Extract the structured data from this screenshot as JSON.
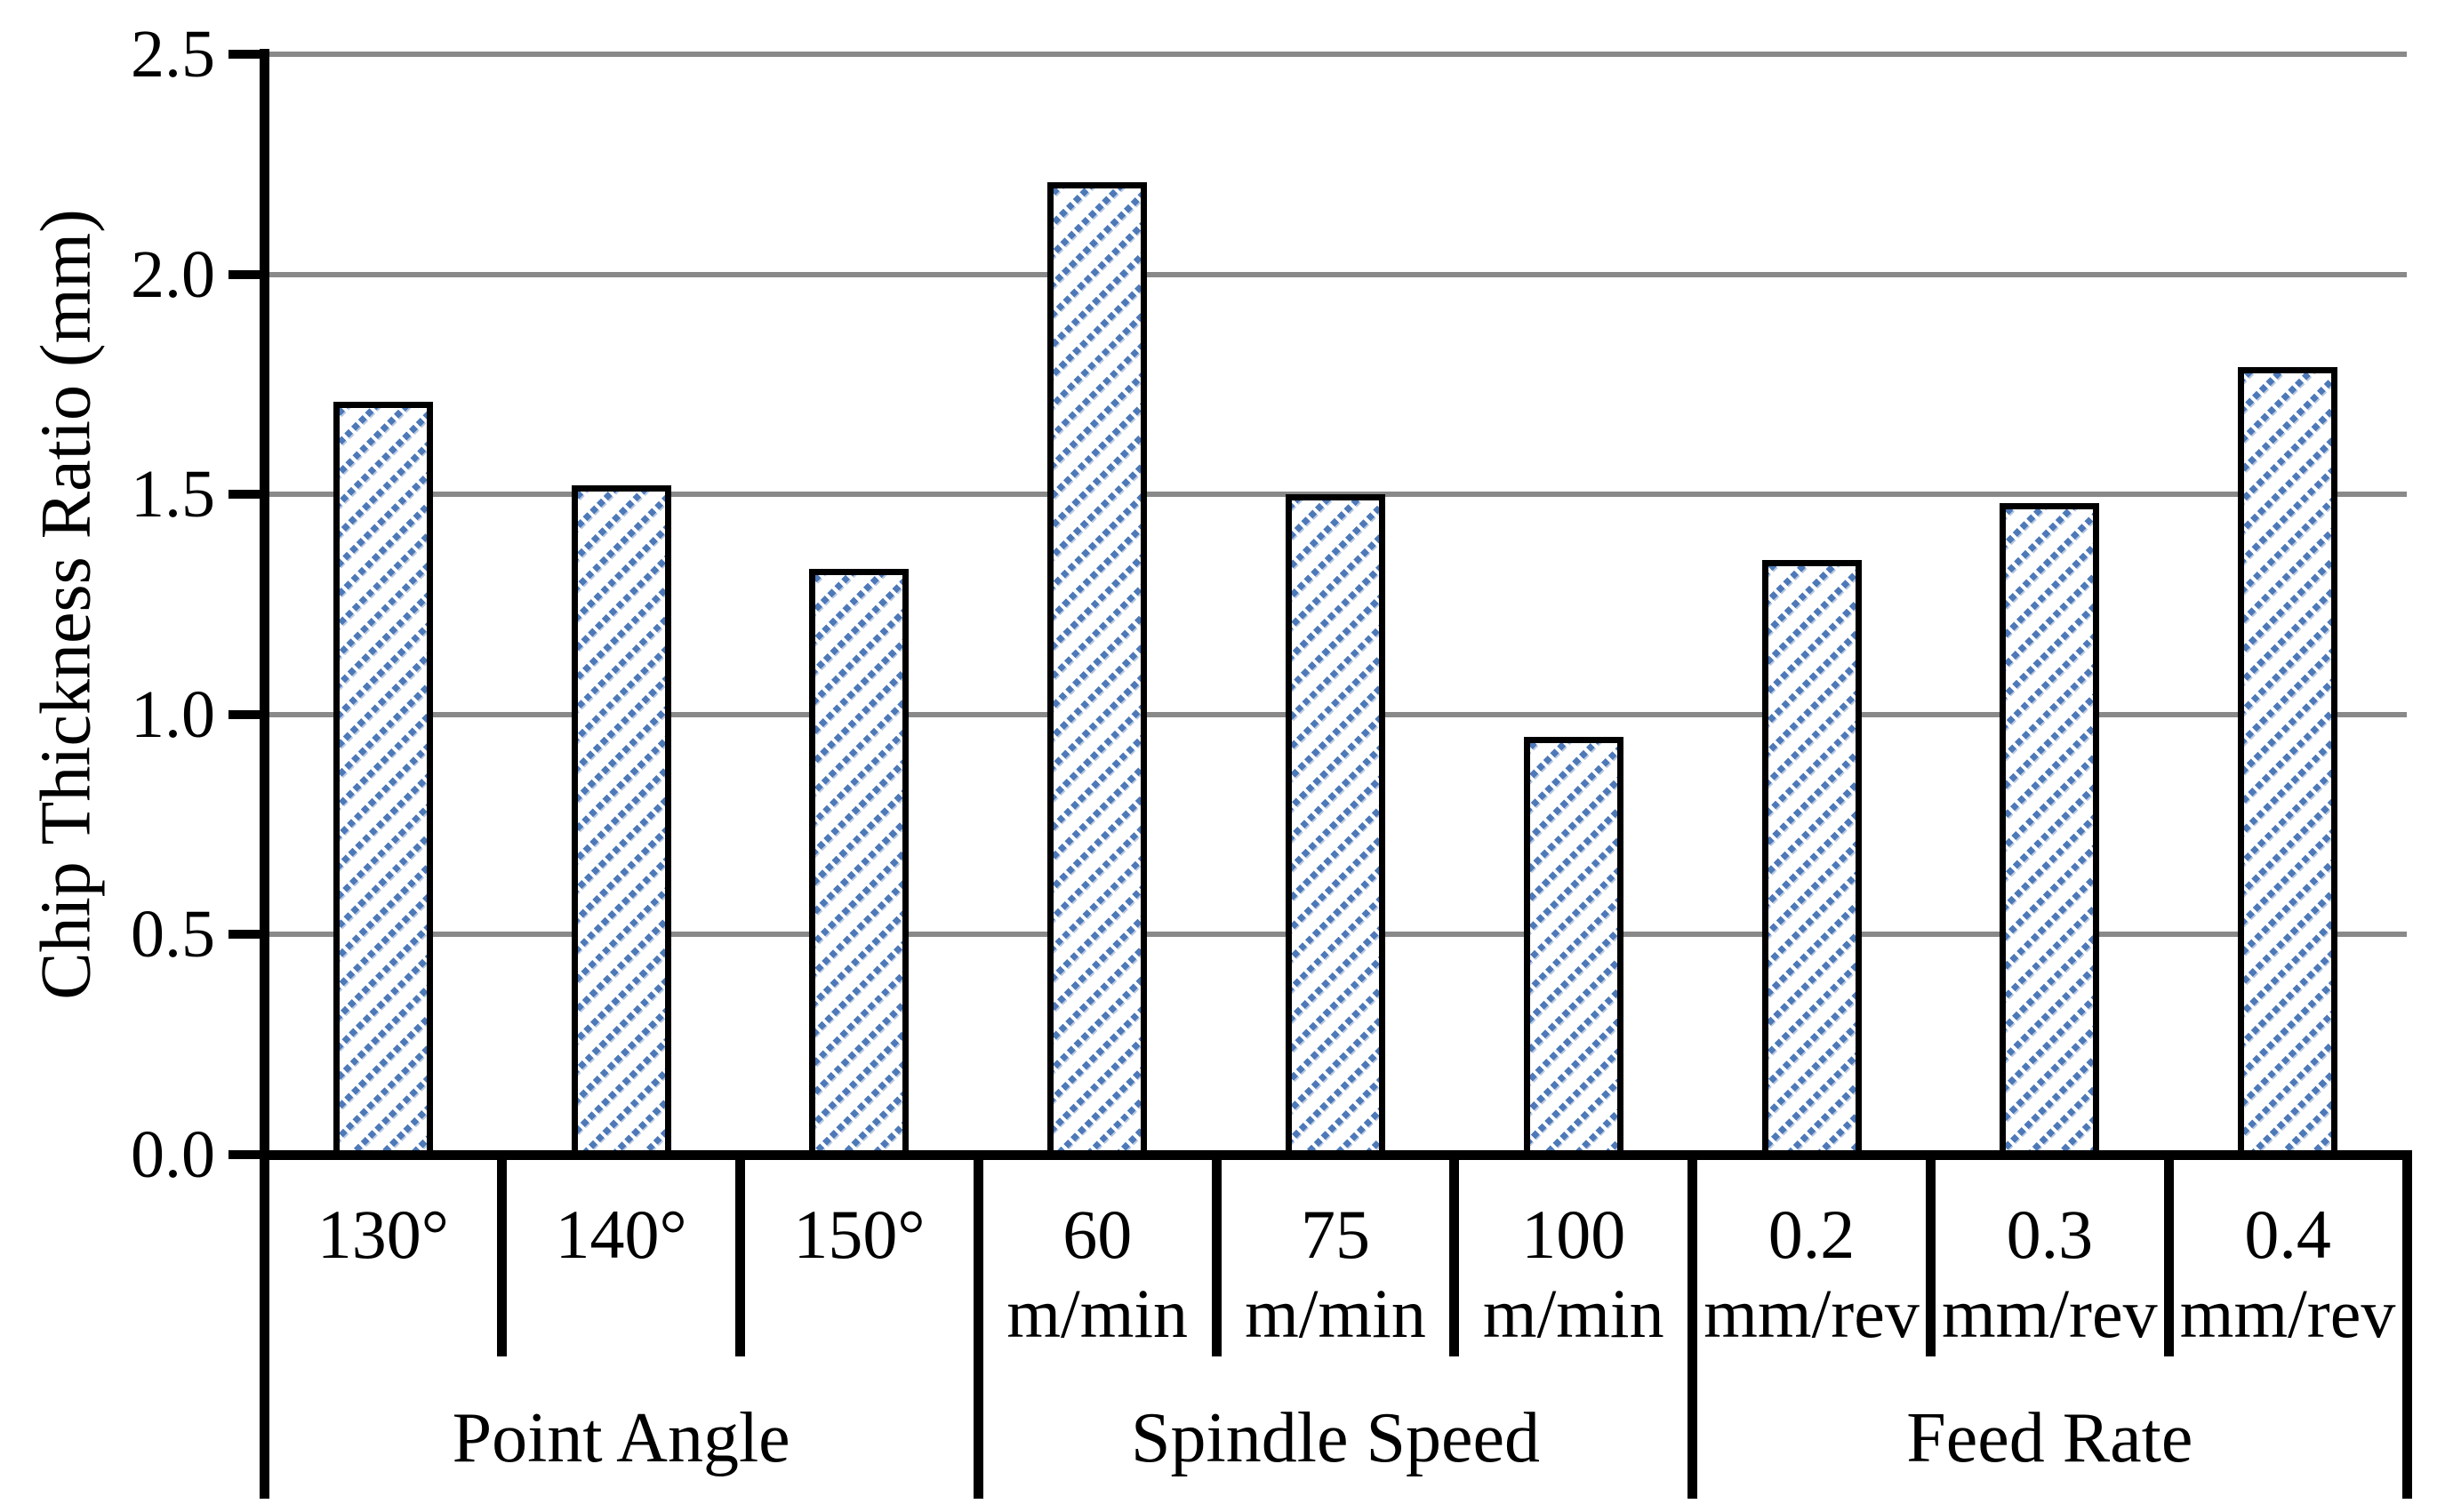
{
  "chart_data": {
    "type": "bar",
    "title": "",
    "ylabel": "Chip Thickness Ratio (mm)",
    "xlabel": "",
    "ylim": [
      0,
      2.5
    ],
    "ytick_interval": 0.5,
    "ytick_labels": [
      "0.0",
      "0.5",
      "1.0",
      "1.5",
      "2.0",
      "2.5"
    ],
    "grid": true,
    "legend": false,
    "groups": [
      {
        "label": "Point Angle",
        "categories": [
          {
            "label_lines": [
              "130°"
            ],
            "value": 1.71
          },
          {
            "label_lines": [
              "140°"
            ],
            "value": 1.52
          },
          {
            "label_lines": [
              "150°"
            ],
            "value": 1.33
          }
        ]
      },
      {
        "label": "Spindle Speed",
        "categories": [
          {
            "label_lines": [
              "60",
              "m/min"
            ],
            "value": 2.21
          },
          {
            "label_lines": [
              "75",
              "m/min"
            ],
            "value": 1.5
          },
          {
            "label_lines": [
              "100",
              "m/min"
            ],
            "value": 0.95
          }
        ]
      },
      {
        "label": "Feed Rate",
        "categories": [
          {
            "label_lines": [
              "0.2",
              "mm/rev"
            ],
            "value": 1.35
          },
          {
            "label_lines": [
              "0.3",
              "mm/rev"
            ],
            "value": 1.48
          },
          {
            "label_lines": [
              "0.4",
              "mm/rev"
            ],
            "value": 1.79
          }
        ]
      }
    ],
    "series": [
      {
        "name": "Chip Thickness Ratio",
        "values": [
          1.71,
          1.52,
          1.33,
          2.21,
          1.5,
          0.95,
          1.35,
          1.48,
          1.79
        ]
      }
    ],
    "style": {
      "bar_hatch_color": "#4d79b8",
      "bar_hatch_light": "#b9c9e2",
      "bar_border_color": "#000000",
      "gridline_color": "#898989",
      "axis_color": "#000000",
      "background": "#ffffff"
    }
  }
}
